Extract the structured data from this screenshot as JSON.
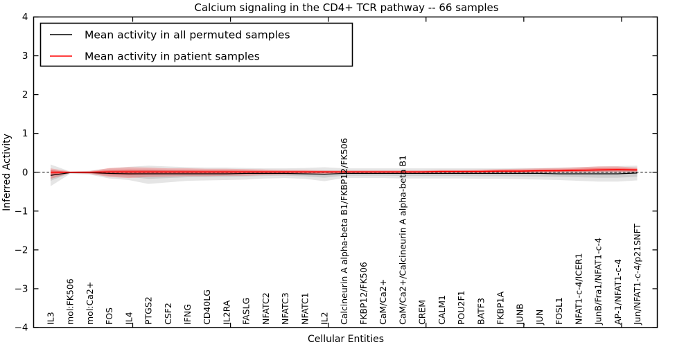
{
  "chart_data": {
    "type": "line",
    "title": "Calcium signaling in the CD4+ TCR pathway -- 66 samples",
    "xlabel": "Cellular Entities",
    "ylabel": "Inferred Activity",
    "ylim": [
      -4,
      4
    ],
    "ytick_values": [
      -4,
      -3,
      -2,
      -1,
      0,
      1,
      2,
      3,
      4
    ],
    "ytick_labels": [
      "−4",
      "−3",
      "−2",
      "−1",
      "0",
      "1",
      "2",
      "3",
      "4"
    ],
    "xticks_major": [
      4.2,
      9.2,
      14.2,
      19.2,
      24.2,
      29.2
    ],
    "grid": false,
    "zero_line": {
      "y": 0,
      "style": "dashed",
      "color": "#000000"
    },
    "legend_position": "upper left",
    "categories": [
      "IL3",
      "mol:FK506",
      "mol:Ca2+",
      "FOS",
      "IL4",
      "PTGS2",
      "CSF2",
      "IFNG",
      "CD40LG",
      "IL2RA",
      "FASLG",
      "NFATC2",
      "NFATC3",
      "NFATC1",
      "IL2",
      "Calcineurin A alpha-beta B1/FKBP12/FK506",
      "FKBP12/FK506",
      "CaM/Ca2+",
      "CaM/Ca2+/Calcineurin A alpha-beta B1",
      "CREM",
      "CALM1",
      "POU2F1",
      "BATF3",
      "FKBP1A",
      "JUNB",
      "JUN",
      "FOSL1",
      "NFAT1-c-4/ICER1",
      "JunB/Fra1/NFAT1-c-4",
      "AP-1/NFAT1-c-4",
      "Jun/NFAT1-c-4/p21SNFT"
    ],
    "series": [
      {
        "name": "Mean activity in all permuted samples",
        "color": "#000000",
        "band_color": "#000000",
        "band_alpha": 0.1,
        "values": [
          -0.08,
          -0.01,
          -0.01,
          -0.03,
          -0.04,
          -0.04,
          -0.04,
          -0.04,
          -0.04,
          -0.04,
          -0.03,
          -0.03,
          -0.03,
          -0.04,
          -0.05,
          -0.03,
          -0.03,
          -0.03,
          -0.03,
          -0.03,
          -0.03,
          -0.03,
          -0.03,
          -0.03,
          -0.03,
          -0.03,
          -0.04,
          -0.04,
          -0.04,
          -0.04,
          -0.02
        ],
        "band_high": [
          0.2,
          0.02,
          0.04,
          0.1,
          0.14,
          0.17,
          0.15,
          0.13,
          0.12,
          0.12,
          0.11,
          0.1,
          0.1,
          0.11,
          0.13,
          0.1,
          0.1,
          0.1,
          0.1,
          0.1,
          0.1,
          0.1,
          0.1,
          0.1,
          0.11,
          0.11,
          0.12,
          0.13,
          0.15,
          0.16,
          0.17
        ],
        "band_low": [
          -0.36,
          -0.04,
          -0.06,
          -0.16,
          -0.2,
          -0.3,
          -0.26,
          -0.22,
          -0.21,
          -0.2,
          -0.19,
          -0.16,
          -0.15,
          -0.17,
          -0.23,
          -0.15,
          -0.15,
          -0.15,
          -0.16,
          -0.16,
          -0.16,
          -0.16,
          -0.17,
          -0.17,
          -0.18,
          -0.19,
          -0.2,
          -0.22,
          -0.24,
          -0.24,
          -0.21
        ]
      },
      {
        "name": "Mean activity in patient samples",
        "color": "#ff0000",
        "band_color": "#ff0000",
        "band_alpha": 0.22,
        "values": [
          0.0,
          0.0,
          0.0,
          0.01,
          0.01,
          0.01,
          0.01,
          0.01,
          0.01,
          0.01,
          0.01,
          0.01,
          0.01,
          0.01,
          0.01,
          0.01,
          0.01,
          0.01,
          0.01,
          0.01,
          0.02,
          0.02,
          0.02,
          0.03,
          0.03,
          0.04,
          0.04,
          0.05,
          0.06,
          0.07,
          0.06
        ],
        "band_high": [
          0.1,
          0.02,
          0.03,
          0.11,
          0.13,
          0.12,
          0.1,
          0.1,
          0.09,
          0.09,
          0.08,
          0.07,
          0.06,
          0.06,
          0.05,
          0.05,
          0.05,
          0.05,
          0.05,
          0.05,
          0.06,
          0.06,
          0.07,
          0.08,
          0.09,
          0.1,
          0.11,
          0.13,
          0.15,
          0.15,
          0.12
        ],
        "band_low": [
          -0.17,
          -0.02,
          -0.04,
          -0.12,
          -0.15,
          -0.12,
          -0.11,
          -0.1,
          -0.1,
          -0.09,
          -0.09,
          -0.07,
          -0.06,
          -0.05,
          -0.05,
          -0.04,
          -0.04,
          -0.04,
          -0.04,
          -0.04,
          -0.03,
          -0.03,
          -0.03,
          -0.02,
          -0.02,
          -0.02,
          -0.01,
          -0.01,
          0.0,
          0.0,
          0.0
        ]
      }
    ]
  }
}
